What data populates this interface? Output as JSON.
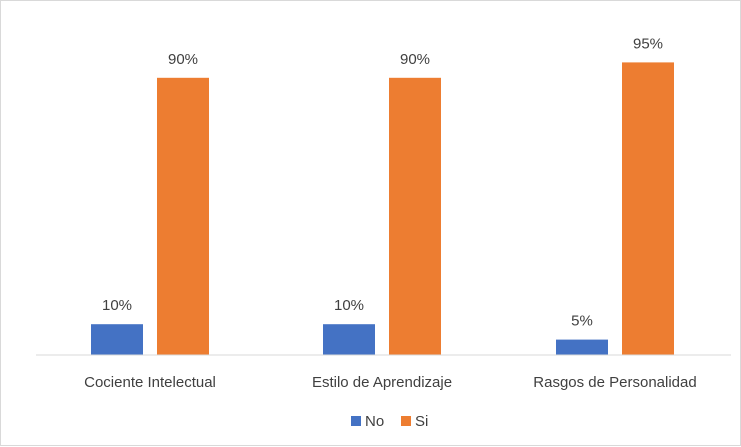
{
  "chart_data": {
    "type": "bar",
    "categories": [
      "Cociente Intelectual",
      "Estilo de Aprendizaje",
      "Rasgos de Personalidad"
    ],
    "series": [
      {
        "name": "No",
        "values": [
          10,
          10,
          5
        ],
        "labels": [
          "10%",
          "10%",
          "5%"
        ],
        "color": "#4472C4"
      },
      {
        "name": "Si",
        "values": [
          90,
          90,
          95
        ],
        "labels": [
          "90%",
          "90%",
          "95%"
        ],
        "color": "#ED7D31"
      }
    ],
    "ylim": [
      0,
      100
    ],
    "grid": false,
    "legend": "bottom"
  }
}
